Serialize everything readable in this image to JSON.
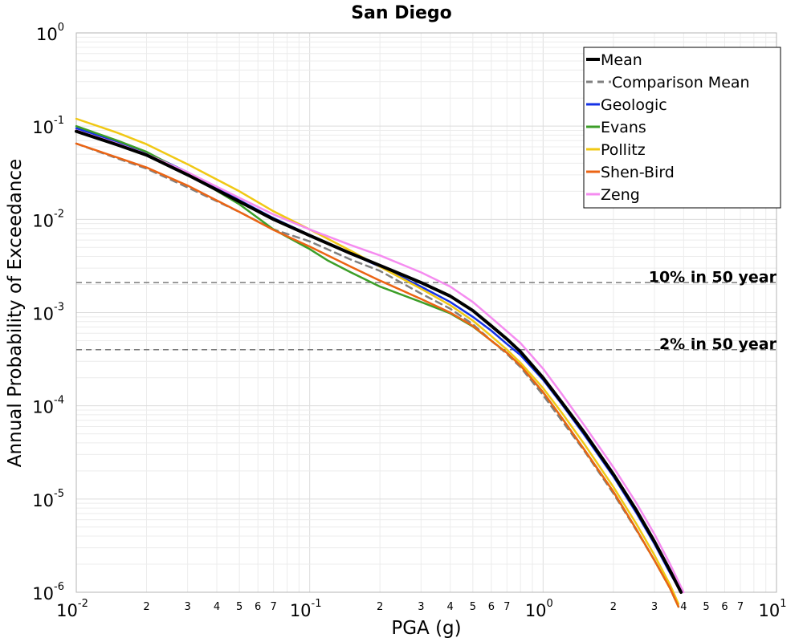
{
  "chart_data": {
    "type": "line",
    "title": "San Diego",
    "xlabel": "PGA (g)",
    "ylabel": "Annual Probability of Exceedance",
    "xscale": "log",
    "yscale": "log",
    "xlim": [
      0.01,
      10
    ],
    "ylim": [
      1e-06,
      1
    ],
    "grid": true,
    "legend_position": "top-right",
    "x_major_ticks": [
      {
        "base": "10",
        "exp": "-2"
      },
      {
        "base": "10",
        "exp": "-1"
      },
      {
        "base": "10",
        "exp": "0"
      },
      {
        "base": "10",
        "exp": "1"
      }
    ],
    "x_minor_tick_labels": [
      "2",
      "3",
      "4",
      "5",
      "6",
      "7"
    ],
    "y_major_ticks": [
      {
        "base": "10",
        "exp": "0"
      },
      {
        "base": "10",
        "exp": "-1"
      },
      {
        "base": "10",
        "exp": "-2"
      },
      {
        "base": "10",
        "exp": "-3"
      },
      {
        "base": "10",
        "exp": "-4"
      },
      {
        "base": "10",
        "exp": "-5"
      },
      {
        "base": "10",
        "exp": "-6"
      }
    ],
    "reference_lines": [
      {
        "label": "10% in 50 year",
        "y": 0.0021
      },
      {
        "label": "2% in 50 year",
        "y": 0.0004
      }
    ],
    "series": [
      {
        "name": "Comparison Mean",
        "color": "#808080",
        "dashed": true,
        "x": [
          0.01,
          0.015,
          0.02,
          0.03,
          0.05,
          0.07,
          0.1,
          0.15,
          0.2,
          0.3,
          0.4,
          0.5,
          0.6,
          0.7,
          0.8,
          1.0,
          1.2,
          1.5,
          2.0,
          2.5,
          3.0,
          3.5,
          3.8
        ],
        "y": [
          0.065,
          0.045,
          0.035,
          0.022,
          0.012,
          0.0078,
          0.0058,
          0.0037,
          0.0028,
          0.0016,
          0.0011,
          0.00075,
          0.0005,
          0.00036,
          0.00026,
          0.00013,
          7e-05,
          3.3e-05,
          1.15e-05,
          4.7e-06,
          2.2e-06,
          1.1e-06,
          7e-07
        ]
      },
      {
        "name": "Geologic",
        "color": "#1432e6",
        "dashed": false,
        "x": [
          0.01,
          0.015,
          0.02,
          0.03,
          0.05,
          0.07,
          0.1,
          0.15,
          0.2,
          0.3,
          0.4,
          0.5,
          0.6,
          0.7,
          0.8,
          1.0,
          1.2,
          1.5,
          2.0,
          2.5,
          3.0,
          3.5,
          3.9
        ],
        "y": [
          0.095,
          0.068,
          0.052,
          0.032,
          0.016,
          0.0103,
          0.0068,
          0.0043,
          0.0031,
          0.0019,
          0.0013,
          0.0009,
          0.00064,
          0.00046,
          0.00035,
          0.00019,
          0.000105,
          4.9e-05,
          1.75e-05,
          7.2e-06,
          3.3e-06,
          1.6e-06,
          1e-06
        ]
      },
      {
        "name": "Evans",
        "color": "#3c9e28",
        "dashed": false,
        "x": [
          0.01,
          0.015,
          0.02,
          0.03,
          0.05,
          0.07,
          0.1,
          0.12,
          0.15,
          0.2,
          0.3,
          0.4,
          0.5,
          0.6,
          0.7,
          0.8,
          1.0,
          1.2,
          1.5,
          2.0,
          2.5,
          3.0,
          3.5,
          3.8
        ],
        "y": [
          0.1,
          0.07,
          0.053,
          0.031,
          0.0145,
          0.0078,
          0.0048,
          0.0036,
          0.0027,
          0.0019,
          0.0013,
          0.00098,
          0.00071,
          0.0005,
          0.00037,
          0.00027,
          0.00014,
          7.5e-05,
          3.4e-05,
          1.2e-05,
          4.8e-06,
          2.2e-06,
          1.1e-06,
          7e-07
        ]
      },
      {
        "name": "Pollitz",
        "color": "#f0c814",
        "dashed": false,
        "x": [
          0.01,
          0.015,
          0.02,
          0.03,
          0.05,
          0.07,
          0.1,
          0.15,
          0.2,
          0.3,
          0.4,
          0.5,
          0.6,
          0.7,
          0.8,
          1.0,
          1.2,
          1.5,
          2.0,
          2.5,
          3.0,
          3.5,
          3.8
        ],
        "y": [
          0.12,
          0.085,
          0.064,
          0.039,
          0.02,
          0.0122,
          0.0078,
          0.0046,
          0.0031,
          0.0018,
          0.0012,
          0.00082,
          0.00056,
          0.0004,
          0.00029,
          0.000155,
          8.5e-05,
          3.9e-05,
          1.35e-05,
          5.5e-06,
          2.5e-06,
          1.2e-06,
          7.5e-07
        ]
      },
      {
        "name": "Shen-Bird",
        "color": "#eb6414",
        "dashed": false,
        "x": [
          0.01,
          0.015,
          0.02,
          0.03,
          0.05,
          0.07,
          0.1,
          0.15,
          0.2,
          0.3,
          0.4,
          0.5,
          0.6,
          0.7,
          0.8,
          1.0,
          1.2,
          1.5,
          2.0,
          2.5,
          3.0,
          3.5,
          3.8
        ],
        "y": [
          0.065,
          0.046,
          0.036,
          0.023,
          0.012,
          0.0077,
          0.0051,
          0.0031,
          0.0022,
          0.0014,
          0.001,
          0.00072,
          0.0005,
          0.00037,
          0.00027,
          0.00014,
          7.5e-05,
          3.4e-05,
          1.2e-05,
          4.8e-06,
          2.2e-06,
          1.1e-06,
          7e-07
        ]
      },
      {
        "name": "Zeng",
        "color": "#f58cf0",
        "dashed": false,
        "x": [
          0.01,
          0.015,
          0.02,
          0.03,
          0.05,
          0.07,
          0.1,
          0.15,
          0.2,
          0.3,
          0.4,
          0.5,
          0.6,
          0.7,
          0.8,
          1.0,
          1.2,
          1.5,
          2.0,
          2.5,
          3.0,
          3.5,
          4.0
        ],
        "y": [
          0.09,
          0.065,
          0.05,
          0.032,
          0.017,
          0.0113,
          0.0078,
          0.0053,
          0.0041,
          0.0027,
          0.0019,
          0.0013,
          0.00088,
          0.00063,
          0.00047,
          0.00025,
          0.000135,
          6.2e-05,
          2.2e-05,
          9.2e-06,
          4.2e-06,
          2e-06,
          1e-06
        ]
      },
      {
        "name": "Mean",
        "color": "#000000",
        "dashed": false,
        "bold": true,
        "x": [
          0.01,
          0.015,
          0.02,
          0.03,
          0.05,
          0.07,
          0.1,
          0.15,
          0.2,
          0.3,
          0.4,
          0.5,
          0.6,
          0.7,
          0.8,
          1.0,
          1.2,
          1.5,
          2.0,
          2.5,
          3.0,
          3.5,
          3.9
        ],
        "y": [
          0.088,
          0.063,
          0.049,
          0.03,
          0.0155,
          0.01,
          0.0067,
          0.0043,
          0.0032,
          0.0021,
          0.0015,
          0.00105,
          0.00072,
          0.00052,
          0.00038,
          0.0002,
          0.00011,
          5.2e-05,
          1.85e-05,
          7.7e-06,
          3.5e-06,
          1.7e-06,
          1e-06
        ]
      }
    ],
    "legend_order": [
      "Mean",
      "Comparison Mean",
      "Geologic",
      "Evans",
      "Pollitz",
      "Shen-Bird",
      "Zeng"
    ]
  }
}
